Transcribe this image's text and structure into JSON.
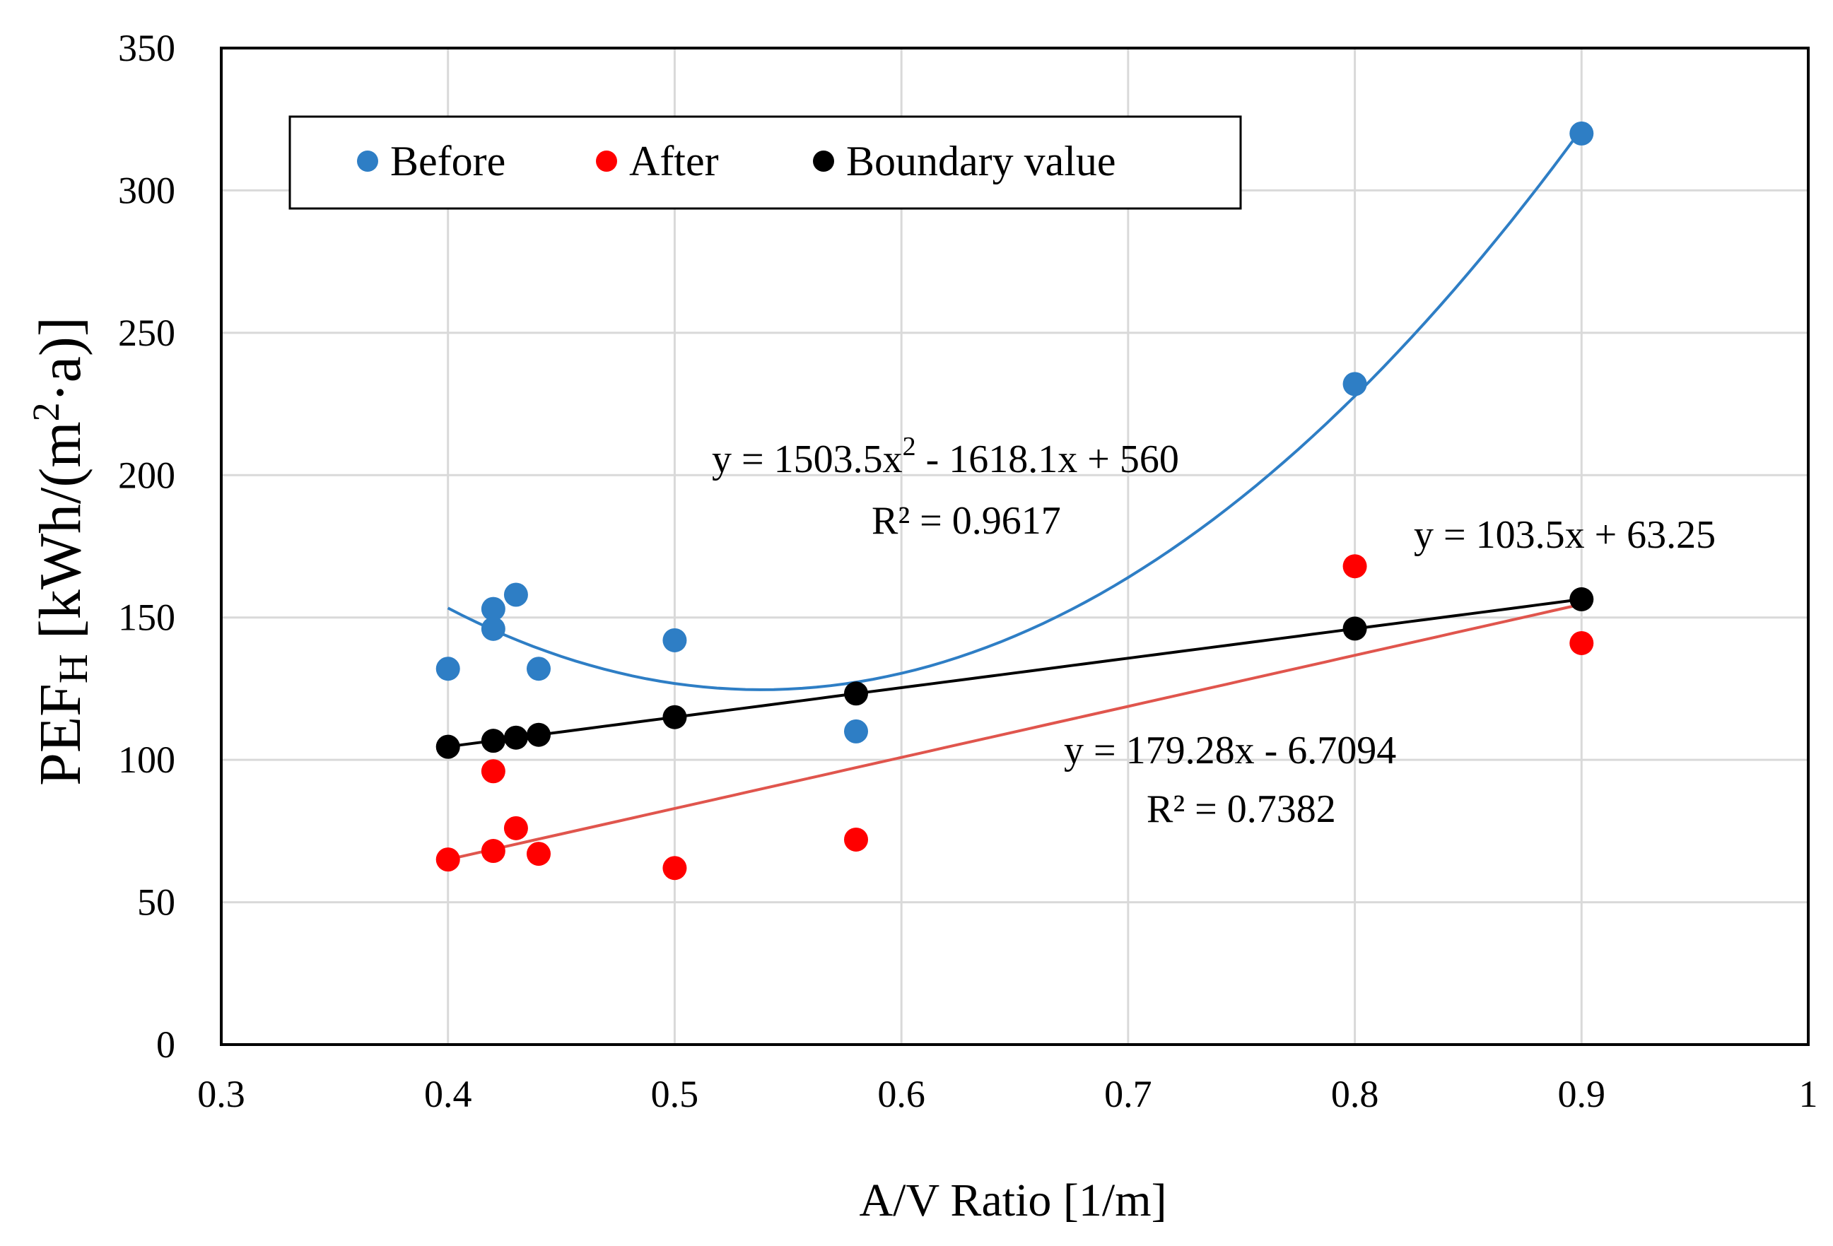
{
  "chart_data": {
    "type": "scatter",
    "xlabel": "A/V Ratio [1/m]",
    "ylabel": {
      "main": "PEF",
      "sub": "H",
      "unit_open": " [kWh/(m",
      "unit_sup": "2",
      "unit_close": "·a)]"
    },
    "xlim": [
      0.3,
      1.0
    ],
    "ylim": [
      0,
      350
    ],
    "x_ticks": [
      0.3,
      0.4,
      0.5,
      0.6,
      0.7,
      0.8,
      0.9,
      1.0
    ],
    "x_tick_labels": [
      "0.3",
      "0.4",
      "0.5",
      "0.6",
      "0.7",
      "0.8",
      "0.9",
      "1"
    ],
    "y_ticks": [
      0,
      50,
      100,
      150,
      200,
      250,
      300,
      350
    ],
    "y_tick_labels": [
      "0",
      "50",
      "100",
      "150",
      "200",
      "250",
      "300",
      "350"
    ],
    "grid": true,
    "legend_position": "top-left",
    "series": [
      {
        "name": "Before",
        "color": "#2E7EC5",
        "x": [
          0.4,
          0.42,
          0.42,
          0.43,
          0.44,
          0.5,
          0.58,
          0.8,
          0.9
        ],
        "y": [
          132,
          153,
          146,
          158,
          132,
          142,
          110,
          232,
          320
        ],
        "trendline": {
          "type": "poly2",
          "coef": [
            1503.5,
            -1618.1,
            560
          ],
          "x_range": [
            0.4,
            0.9
          ],
          "color": "#2E7EC5"
        }
      },
      {
        "name": "After",
        "color": "#FF0000",
        "x": [
          0.4,
          0.42,
          0.42,
          0.43,
          0.44,
          0.5,
          0.58,
          0.8,
          0.9
        ],
        "y": [
          65,
          96,
          68,
          76,
          67,
          62,
          72,
          168,
          141
        ],
        "trendline": {
          "type": "linear",
          "coef": [
            179.28,
            -6.7094
          ],
          "x_range": [
            0.4,
            0.9
          ],
          "color": "#E0554D"
        }
      },
      {
        "name": "Boundary value",
        "color": "#000000",
        "x": [
          0.4,
          0.42,
          0.43,
          0.44,
          0.5,
          0.58,
          0.8,
          0.9
        ],
        "y": [
          104.6,
          106.7,
          107.8,
          108.8,
          115.0,
          123.3,
          146.1,
          156.4
        ],
        "trendline": {
          "type": "linear",
          "coef": [
            103.5,
            63.25
          ],
          "x_range": [
            0.4,
            0.9
          ],
          "color": "#000000"
        }
      }
    ],
    "annotations": {
      "before_eq": {
        "a": "y = 1503.5x",
        "sup": "2",
        "b": " - 1618.1x + 560"
      },
      "before_r2": "R² = 0.9617",
      "boundary_eq": "y = 103.5x + 63.25",
      "after_eq": "y = 179.28x - 6.7094",
      "after_r2": "R² = 0.7382"
    }
  }
}
